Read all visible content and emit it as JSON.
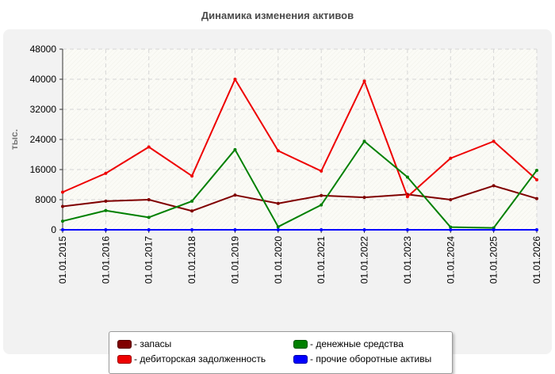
{
  "chart_data": {
    "type": "line",
    "title": "Динамика изменения активов",
    "ylabel": "тыс.",
    "xlabel": "",
    "ylim": [
      0,
      48000
    ],
    "yticks": [
      0,
      8000,
      16000,
      24000,
      32000,
      40000,
      48000
    ],
    "grid": true,
    "legend_position": "bottom",
    "categories": [
      "01.01.2015",
      "01.01.2016",
      "01.01.2017",
      "01.01.2018",
      "01.01.2019",
      "01.01.2020",
      "01.01.2021",
      "01.01.2022",
      "01.01.2023",
      "01.01.2024",
      "01.01.2025",
      "01.01.2026"
    ],
    "series": [
      {
        "name": "- запасы",
        "color": "#800000",
        "values": [
          6200,
          7600,
          8000,
          5000,
          9200,
          7000,
          9100,
          8600,
          9400,
          8000,
          11700,
          8300
        ]
      },
      {
        "name": "- дебиторская задолженность",
        "color": "#ee0000",
        "values": [
          10000,
          15000,
          22000,
          14300,
          40000,
          21000,
          15600,
          39500,
          8800,
          19000,
          23500,
          13300
        ]
      },
      {
        "name": "- денежные средства",
        "color": "#008000",
        "values": [
          2300,
          5100,
          3300,
          7600,
          21300,
          800,
          6600,
          23500,
          14000,
          700,
          500,
          15800
        ]
      },
      {
        "name": "- прочие оборотные активы",
        "color": "#0000ff",
        "values": [
          0,
          0,
          0,
          0,
          0,
          0,
          0,
          0,
          0,
          0,
          0,
          0
        ]
      }
    ]
  }
}
